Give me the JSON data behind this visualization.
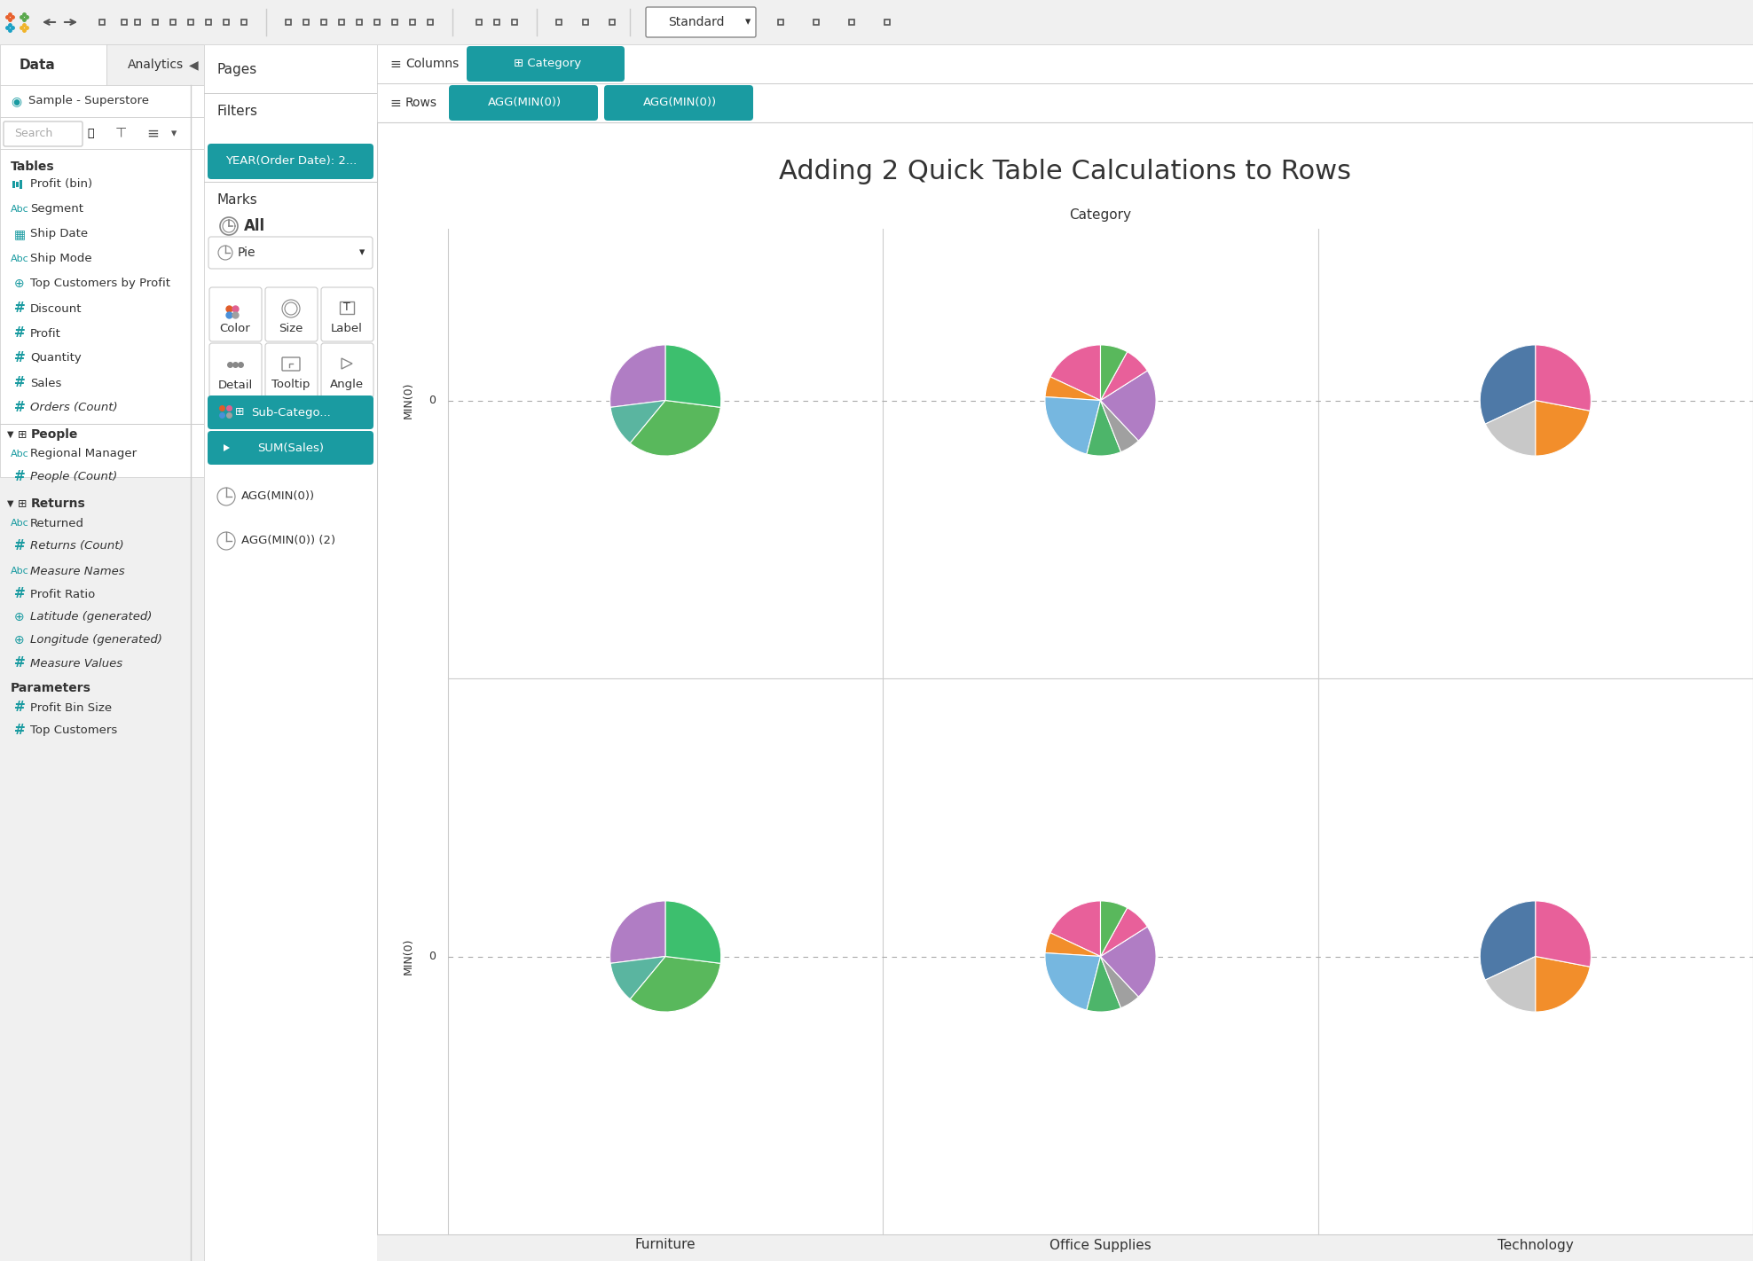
{
  "title": "Adding 2 Quick Table Calculations to Rows",
  "teal": "#1a9ba1",
  "categories": [
    "Furniture",
    "Office Supplies",
    "Technology"
  ],
  "pie_furniture": {
    "slices": [
      0.27,
      0.12,
      0.34,
      0.27
    ],
    "colors": [
      "#b07dc4",
      "#5ab5a0",
      "#59b85c",
      "#3dbf6e"
    ]
  },
  "pie_office": {
    "slices": [
      0.18,
      0.06,
      0.22,
      0.1,
      0.06,
      0.22,
      0.08,
      0.08
    ],
    "colors": [
      "#e8609a",
      "#f28e2b",
      "#76b7e0",
      "#4db56a",
      "#a0a0a0",
      "#b07dc4",
      "#e8609a",
      "#59b85c"
    ]
  },
  "pie_tech": {
    "slices": [
      0.32,
      0.18,
      0.22,
      0.28
    ],
    "colors": [
      "#4e79a7",
      "#c8c8c8",
      "#f28e2b",
      "#e8609a"
    ]
  },
  "datasource": "Sample - Superstore",
  "filter_label": "YEAR(Order Date): 2...",
  "bg_gray": "#f0f0f0",
  "white": "#ffffff",
  "border_color": "#cccccc",
  "text_dark": "#333333",
  "text_medium": "#555555",
  "text_light": "#aaaaaa"
}
